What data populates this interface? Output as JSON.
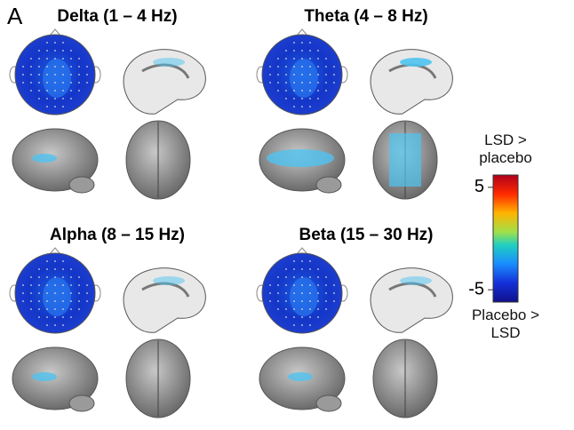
{
  "panel_label": "A",
  "panels": [
    {
      "title": "Delta (1 – 4 Hz)"
    },
    {
      "title": "Theta (4 – 8 Hz)"
    },
    {
      "title": "Alpha (8 – 15 Hz)"
    },
    {
      "title": "Beta (15 – 30 Hz)"
    }
  ],
  "colorbar": {
    "top_label": "LSD > placebo",
    "bottom_label": "Placebo > LSD",
    "lim": [
      -6.2,
      6.2
    ],
    "ticks": [
      5,
      -5
    ]
  }
}
